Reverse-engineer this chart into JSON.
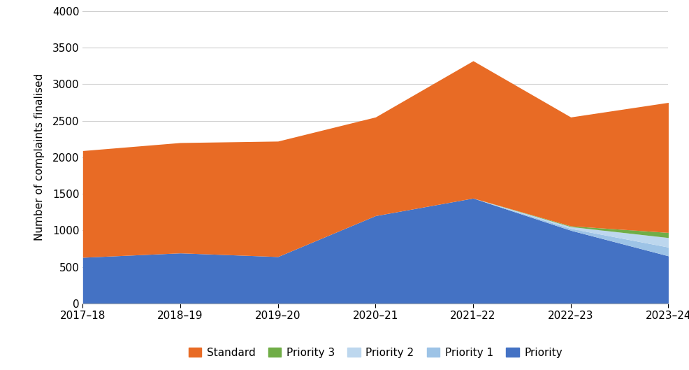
{
  "x_labels": [
    "2017–18",
    "2018–19",
    "2019–20",
    "2020–21",
    "2021–22",
    "2022–23",
    "2023–24"
  ],
  "x_positions": [
    0,
    1,
    2,
    3,
    4,
    5,
    6
  ],
  "series": {
    "Priority": [
      630,
      690,
      640,
      1200,
      1440,
      1000,
      650
    ],
    "Priority 1": [
      0,
      0,
      0,
      0,
      0,
      25,
      120
    ],
    "Priority 2": [
      0,
      0,
      0,
      0,
      0,
      25,
      130
    ],
    "Priority 3": [
      0,
      0,
      0,
      0,
      0,
      10,
      70
    ],
    "Standard": [
      1460,
      1510,
      1580,
      1350,
      1880,
      1490,
      1780
    ]
  },
  "colors": {
    "Priority": "#4472C4",
    "Priority 1": "#9DC3E6",
    "Priority 2": "#BDD7EE",
    "Priority 3": "#70AD47",
    "Standard": "#E86B25"
  },
  "ylabel": "Number of complaints finalised",
  "ylim": [
    0,
    4000
  ],
  "yticks": [
    0,
    500,
    1000,
    1500,
    2000,
    2500,
    3000,
    3500,
    4000
  ],
  "legend_order": [
    "Standard",
    "Priority 3",
    "Priority 2",
    "Priority 1",
    "Priority"
  ],
  "background_color": "#ffffff",
  "grid_color": "#d0d0d0"
}
